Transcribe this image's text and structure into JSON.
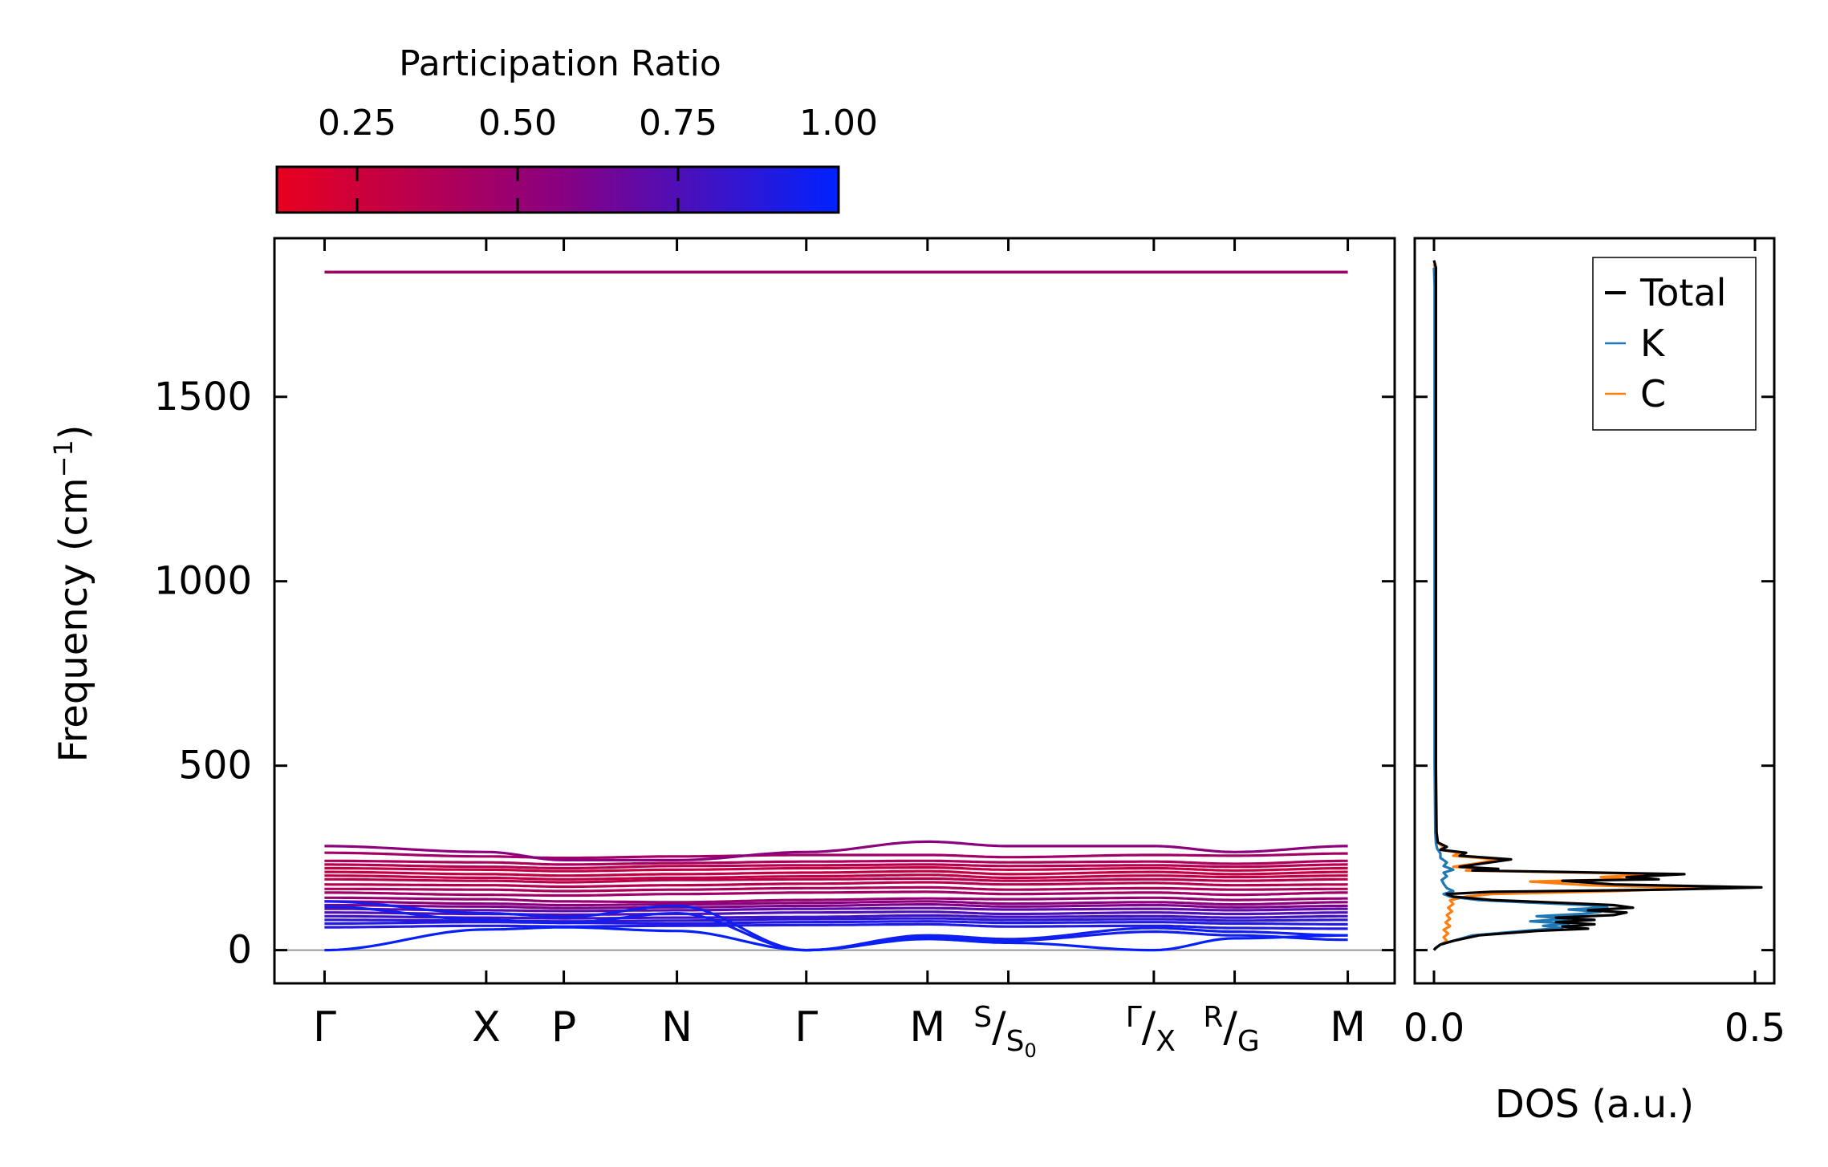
{
  "colorbar": {
    "title": "Participation Ratio",
    "ticks": [
      "0.25",
      "0.50",
      "0.75",
      "1.00"
    ],
    "tick_values": [
      0.25,
      0.5,
      0.75,
      1.0
    ],
    "range": [
      0.125,
      1.0
    ],
    "color_low": "#e8001e",
    "color_mid": "#8a0080",
    "color_high": "#0022ff"
  },
  "chart_data": [
    {
      "type": "line",
      "name": "phonon-band-structure",
      "ylabel": "Frequency (cm",
      "ylabel_sup": "−1",
      "ylabel_end": ")",
      "ylim": [
        -90,
        1930
      ],
      "yticks": [
        0,
        500,
        1000,
        1500
      ],
      "ytick_labels": [
        "0",
        "500",
        "1000",
        "1500"
      ],
      "kpoints": [
        {
          "label": "Γ",
          "x": 0.0
        },
        {
          "label": "X",
          "x": 1.0
        },
        {
          "label": "P",
          "x": 1.48
        },
        {
          "label": "N",
          "x": 2.18
        },
        {
          "label": "Γ",
          "x": 2.98
        },
        {
          "label": "M",
          "x": 3.73
        },
        {
          "label_main": "S",
          "label_sub": "S",
          "label_subsub": "0",
          "x": 4.23
        },
        {
          "label_main": "Γ",
          "label_sub": "X",
          "x": 5.13
        },
        {
          "label_main": "R",
          "label_sub": "G",
          "x": 5.63
        },
        {
          "label": "M",
          "x": 6.33
        }
      ],
      "xlim": [
        -0.31,
        6.62
      ],
      "zero_line_color": "#999999",
      "flat_band": {
        "value": 1838,
        "participation": 0.45
      },
      "bands": [
        {
          "values": [
            282,
            266,
            244,
            244,
            266,
            294,
            282,
            282,
            266,
            282
          ],
          "participation": 0.55
        },
        {
          "values": [
            264,
            254,
            250,
            254,
            258,
            258,
            252,
            258,
            256,
            262
          ],
          "participation": 0.45
        },
        {
          "values": [
            242,
            238,
            232,
            236,
            240,
            242,
            238,
            240,
            234,
            242
          ],
          "participation": 0.4
        },
        {
          "values": [
            232,
            226,
            222,
            228,
            230,
            232,
            228,
            230,
            226,
            232
          ],
          "participation": 0.35
        },
        {
          "values": [
            222,
            218,
            214,
            218,
            222,
            224,
            218,
            222,
            216,
            222
          ],
          "participation": 0.3
        },
        {
          "values": [
            212,
            206,
            202,
            206,
            210,
            214,
            206,
            212,
            206,
            212
          ],
          "participation": 0.3
        },
        {
          "values": [
            202,
            196,
            192,
            196,
            200,
            204,
            196,
            202,
            198,
            202
          ],
          "participation": 0.3
        },
        {
          "values": [
            192,
            188,
            184,
            190,
            192,
            194,
            188,
            192,
            188,
            192
          ],
          "participation": 0.35
        },
        {
          "values": [
            178,
            176,
            172,
            176,
            180,
            184,
            178,
            182,
            176,
            178
          ],
          "participation": 0.35
        },
        {
          "values": [
            166,
            164,
            160,
            164,
            168,
            170,
            164,
            168,
            164,
            166
          ],
          "participation": 0.4
        },
        {
          "values": [
            156,
            150,
            148,
            152,
            156,
            158,
            152,
            156,
            150,
            156
          ],
          "participation": 0.45
        },
        {
          "values": [
            142,
            138,
            132,
            130,
            136,
            140,
            138,
            142,
            136,
            140
          ],
          "participation": 0.5
        },
        {
          "values": [
            132,
            126,
            122,
            124,
            128,
            132,
            126,
            130,
            124,
            130
          ],
          "participation": 0.55
        },
        {
          "values": [
            122,
            118,
            114,
            116,
            120,
            124,
            118,
            122,
            116,
            120
          ],
          "participation": 0.6
        },
        {
          "values": [
            112,
            108,
            106,
            108,
            112,
            114,
            110,
            112,
            108,
            112
          ],
          "participation": 0.7
        },
        {
          "values": [
            102,
            98,
            96,
            98,
            102,
            104,
            98,
            102,
            98,
            102
          ],
          "participation": 0.75
        },
        {
          "values": [
            92,
            88,
            86,
            88,
            90,
            94,
            90,
            92,
            88,
            92
          ],
          "participation": 0.8
        },
        {
          "values": [
            82,
            80,
            78,
            80,
            84,
            86,
            82,
            84,
            80,
            82
          ],
          "participation": 0.85
        },
        {
          "values": [
            72,
            76,
            74,
            72,
            76,
            78,
            74,
            76,
            72,
            70
          ],
          "participation": 0.9
        },
        {
          "values": [
            62,
            66,
            64,
            66,
            68,
            70,
            64,
            66,
            60,
            58
          ],
          "participation": 0.9
        },
        {
          "values": [
            132,
            100,
            90,
            120,
            0,
            40,
            30,
            60,
            50,
            40
          ],
          "participation": 0.95
        },
        {
          "values": [
            118,
            82,
            74,
            100,
            0,
            34,
            26,
            50,
            40,
            28
          ],
          "participation": 0.95
        },
        {
          "values": [
            0,
            56,
            62,
            52,
            0,
            30,
            20,
            0,
            32,
            40
          ],
          "participation": 0.98
        }
      ]
    },
    {
      "type": "line",
      "name": "density-of-states",
      "xlabel": "DOS (a.u.)",
      "xlim": [
        -0.03,
        0.53
      ],
      "xticks": [
        0.0,
        0.5
      ],
      "xtick_labels": [
        "0.0",
        "0.5"
      ],
      "ylim": [
        -90,
        1930
      ],
      "legend": {
        "position": "top-right",
        "entries": [
          "Total",
          "K",
          "C"
        ]
      },
      "series": [
        {
          "name": "Total",
          "color": "#000000",
          "points": [
            [
              0,
              0
            ],
            [
              0.002,
              5
            ],
            [
              0.01,
              15
            ],
            [
              0.03,
              25
            ],
            [
              0.07,
              40
            ],
            [
              0.16,
              52
            ],
            [
              0.24,
              58
            ],
            [
              0.2,
              64
            ],
            [
              0.25,
              70
            ],
            [
              0.19,
              76
            ],
            [
              0.25,
              82
            ],
            [
              0.19,
              88
            ],
            [
              0.28,
              95
            ],
            [
              0.3,
              102
            ],
            [
              0.24,
              108
            ],
            [
              0.31,
              115
            ],
            [
              0.28,
              122
            ],
            [
              0.2,
              128
            ],
            [
              0.09,
              136
            ],
            [
              0.03,
              145
            ],
            [
              0.02,
              152
            ],
            [
              0.09,
              158
            ],
            [
              0.36,
              164
            ],
            [
              0.51,
              170
            ],
            [
              0.28,
              178
            ],
            [
              0.2,
              188
            ],
            [
              0.35,
              192
            ],
            [
              0.3,
              198
            ],
            [
              0.39,
              206
            ],
            [
              0.2,
              212
            ],
            [
              0.06,
              216
            ],
            [
              0.1,
              220
            ],
            [
              0.04,
              226
            ],
            [
              0.08,
              236
            ],
            [
              0.12,
              246
            ],
            [
              0.04,
              256
            ],
            [
              0.05,
              264
            ],
            [
              0.01,
              272
            ],
            [
              0.02,
              280
            ],
            [
              0.006,
              292
            ],
            [
              0.004,
              320
            ],
            [
              0.003,
              500
            ],
            [
              0.003,
              1000
            ],
            [
              0.003,
              1500
            ],
            [
              0.003,
              1700
            ],
            [
              0.003,
              1800
            ],
            [
              0.003,
              1850
            ],
            [
              0,
              1870
            ]
          ]
        },
        {
          "name": "K",
          "color": "#1f77b4",
          "points": [
            [
              0,
              0
            ],
            [
              0.002,
              5
            ],
            [
              0.01,
              15
            ],
            [
              0.03,
              25
            ],
            [
              0.06,
              40
            ],
            [
              0.14,
              52
            ],
            [
              0.2,
              60
            ],
            [
              0.17,
              66
            ],
            [
              0.21,
              72
            ],
            [
              0.15,
              78
            ],
            [
              0.21,
              85
            ],
            [
              0.16,
              92
            ],
            [
              0.23,
              98
            ],
            [
              0.26,
              104
            ],
            [
              0.21,
              110
            ],
            [
              0.27,
              116
            ],
            [
              0.24,
              122
            ],
            [
              0.16,
              128
            ],
            [
              0.07,
              136
            ],
            [
              0.025,
              145
            ],
            [
              0.015,
              152
            ],
            [
              0.03,
              160
            ],
            [
              0.02,
              168
            ],
            [
              0.015,
              180
            ],
            [
              0.012,
              190
            ],
            [
              0.02,
              200
            ],
            [
              0.015,
              210
            ],
            [
              0.03,
              218
            ],
            [
              0.015,
              228
            ],
            [
              0.02,
              238
            ],
            [
              0.01,
              250
            ],
            [
              0.01,
              262
            ],
            [
              0.005,
              275
            ],
            [
              0.003,
              290
            ],
            [
              0.002,
              320
            ],
            [
              0.001,
              500
            ],
            [
              0.001,
              1000
            ],
            [
              0.001,
              1500
            ],
            [
              0.001,
              1800
            ],
            [
              0,
              1850
            ]
          ]
        },
        {
          "name": "C",
          "color": "#ff7f0e",
          "points": [
            [
              0,
              0
            ],
            [
              0.003,
              5
            ],
            [
              0.01,
              15
            ],
            [
              0.02,
              25
            ],
            [
              0.015,
              35
            ],
            [
              0.022,
              45
            ],
            [
              0.015,
              55
            ],
            [
              0.025,
              65
            ],
            [
              0.018,
              75
            ],
            [
              0.025,
              85
            ],
            [
              0.02,
              95
            ],
            [
              0.028,
              105
            ],
            [
              0.022,
              115
            ],
            [
              0.03,
              125
            ],
            [
              0.025,
              135
            ],
            [
              0.05,
              145
            ],
            [
              0.09,
              152
            ],
            [
              0.28,
              160
            ],
            [
              0.42,
              168
            ],
            [
              0.24,
              176
            ],
            [
              0.15,
              186
            ],
            [
              0.3,
              192
            ],
            [
              0.26,
              198
            ],
            [
              0.35,
              206
            ],
            [
              0.18,
              212
            ],
            [
              0.05,
              216
            ],
            [
              0.09,
              220
            ],
            [
              0.03,
              226
            ],
            [
              0.07,
              236
            ],
            [
              0.1,
              246
            ],
            [
              0.03,
              256
            ],
            [
              0.04,
              264
            ],
            [
              0.01,
              272
            ],
            [
              0.015,
              280
            ],
            [
              0.005,
              292
            ],
            [
              0.003,
              320
            ],
            [
              0.003,
              500
            ],
            [
              0.003,
              1000
            ],
            [
              0.003,
              1500
            ],
            [
              0.003,
              1700
            ],
            [
              0.003,
              1800
            ],
            [
              0.003,
              1840
            ],
            [
              0,
              1860
            ]
          ]
        }
      ]
    }
  ]
}
